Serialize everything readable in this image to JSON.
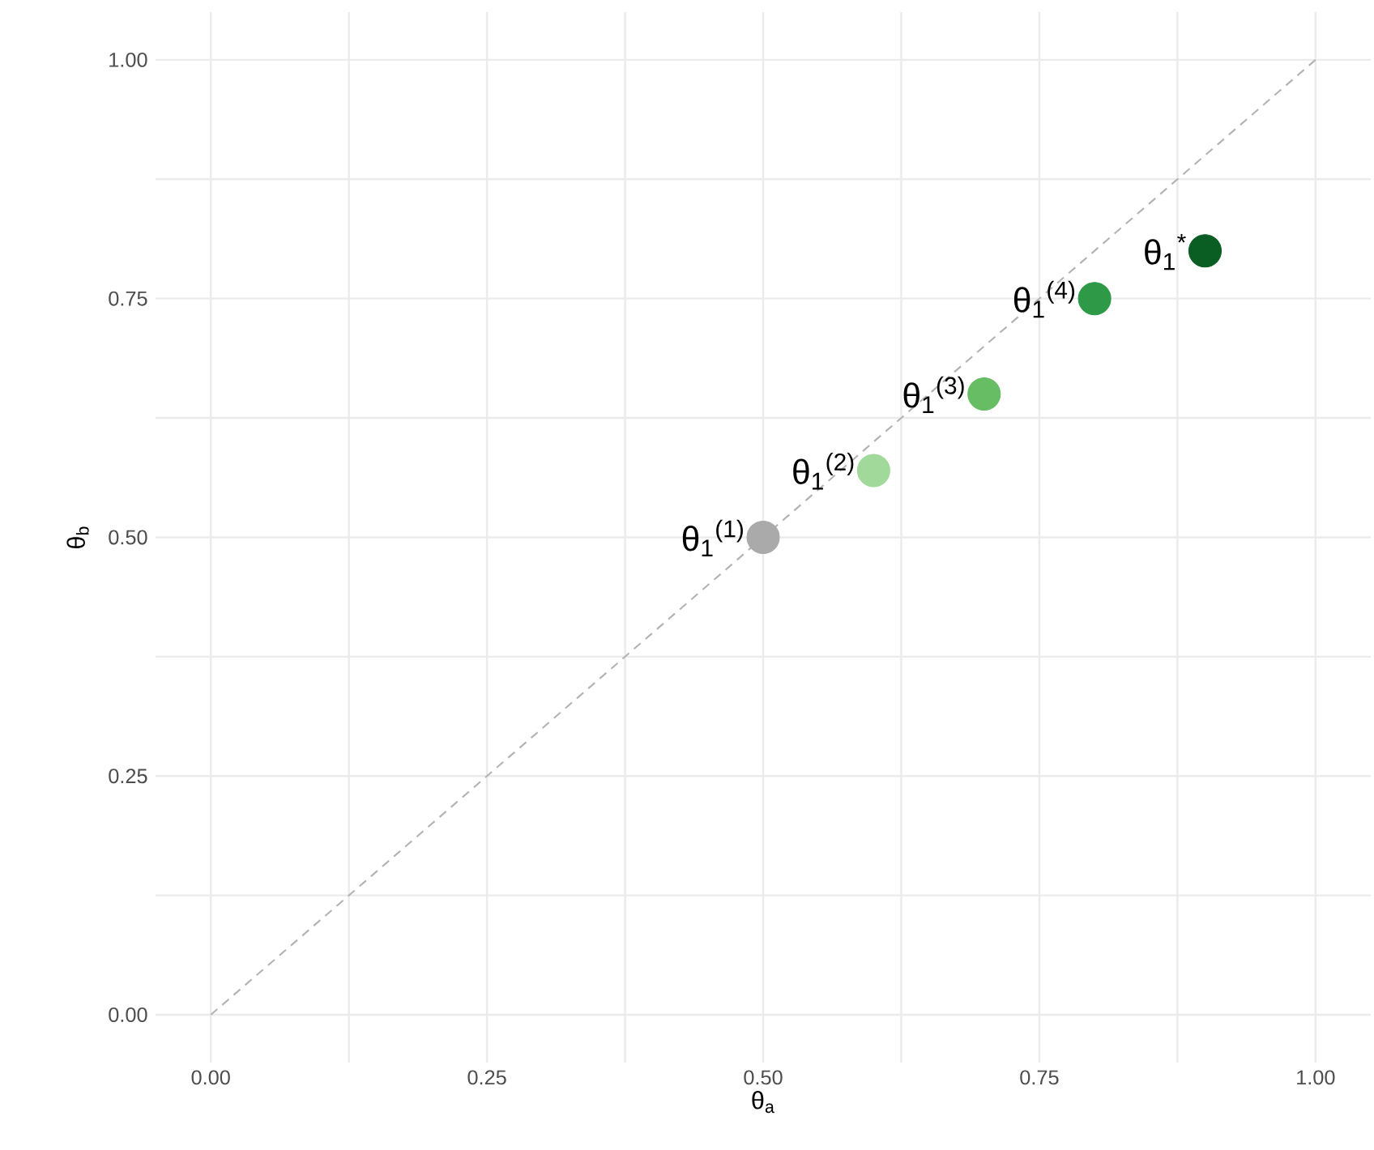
{
  "chart_data": {
    "type": "scatter",
    "xlabel": "θ$_{a}$",
    "ylabel": "θ$_{b}$",
    "xlim": [
      -0.05,
      1.05
    ],
    "ylim": [
      -0.05,
      1.05
    ],
    "xticks": [
      {
        "value": 0,
        "label": "0.00"
      },
      {
        "value": 0.125,
        "label": null
      },
      {
        "value": 0.25,
        "label": "0.25"
      },
      {
        "value": 0.375,
        "label": null
      },
      {
        "value": 0.5,
        "label": "0.50"
      },
      {
        "value": 0.625,
        "label": null
      },
      {
        "value": 0.75,
        "label": "0.75"
      },
      {
        "value": 0.875,
        "label": null
      },
      {
        "value": 1,
        "label": "1.00"
      }
    ],
    "yticks": [
      {
        "value": 0,
        "label": "0.00"
      },
      {
        "value": 0.125,
        "label": null
      },
      {
        "value": 0.25,
        "label": "0.25"
      },
      {
        "value": 0.375,
        "label": null
      },
      {
        "value": 0.5,
        "label": "0.50"
      },
      {
        "value": 0.625,
        "label": null
      },
      {
        "value": 0.75,
        "label": "0.75"
      },
      {
        "value": 0.875,
        "label": null
      },
      {
        "value": 1,
        "label": "1.00"
      }
    ],
    "grid": true,
    "series": [
      {
        "type": "line",
        "x": [
          0,
          1
        ],
        "values": [
          0,
          1
        ],
        "color": "#b3b3b3",
        "line_style": "dashed"
      },
      {
        "type": "scatter",
        "marker": "circle",
        "x": [
          0.5,
          0.6,
          0.7,
          0.8,
          0.9
        ],
        "values": [
          0.5,
          0.57,
          0.65,
          0.75,
          0.8
        ],
        "colors": [
          "#aaaaaa",
          "#a1d99b",
          "#66bd63",
          "#2e9a48",
          "#0b5e23"
        ]
      }
    ],
    "annotations": [
      {
        "text": "θ$_{1}$$^{(1)}$",
        "x": 0.5,
        "y": 0.5
      },
      {
        "text": "θ$_{1}$$^{(2)}$",
        "x": 0.6,
        "y": 0.57
      },
      {
        "text": "θ$_{1}$$^{(3)}$",
        "x": 0.7,
        "y": 0.65
      },
      {
        "text": "θ$_{1}$$^{(4)}$",
        "x": 0.8,
        "y": 0.75
      },
      {
        "text": "θ$_{1}$$^{*}$",
        "x": 0.9,
        "y": 0.8
      }
    ]
  }
}
